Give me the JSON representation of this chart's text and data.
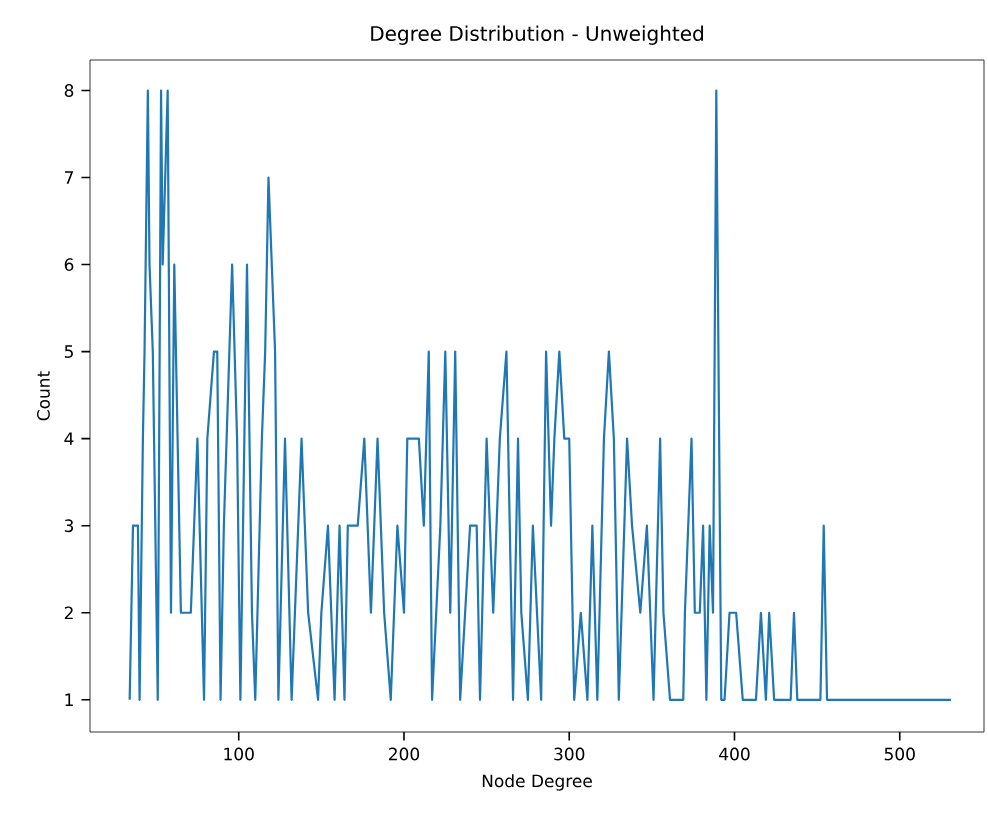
{
  "chart_data": {
    "type": "line",
    "title": "Degree Distribution - Unweighted",
    "xlabel": "Node Degree",
    "ylabel": "Count",
    "x": [
      34,
      36,
      39,
      40,
      42,
      43,
      45,
      46,
      48,
      51,
      53,
      54,
      57,
      59,
      61,
      65,
      67,
      71,
      75,
      79,
      81,
      85,
      87,
      89,
      91,
      96,
      99,
      101,
      105,
      108,
      110,
      114,
      116,
      118,
      122,
      124,
      128,
      132,
      138,
      142,
      148,
      150,
      154,
      158,
      161,
      164,
      166,
      172,
      176,
      180,
      184,
      188,
      192,
      196,
      200,
      202,
      206,
      209,
      212,
      215,
      217,
      222,
      225,
      228,
      231,
      234,
      240,
      244,
      246,
      250,
      254,
      258,
      262,
      266,
      269,
      271,
      275,
      278,
      283,
      286,
      289,
      291,
      294,
      297,
      300,
      303,
      307,
      311,
      314,
      317,
      321,
      324,
      327,
      330,
      335,
      338,
      343,
      347,
      351,
      355,
      357,
      361,
      369,
      370,
      372,
      374,
      376,
      379,
      381,
      383,
      385,
      387,
      389,
      392,
      394,
      397,
      401,
      405,
      413,
      416,
      419,
      421,
      424,
      434,
      436,
      438,
      452,
      454,
      456,
      531
    ],
    "series": [
      {
        "color": "#1f77b4",
        "values": [
          1,
          3,
          3,
          1,
          4,
          5,
          8,
          6,
          5,
          1,
          8,
          6,
          8,
          2,
          6,
          2,
          2,
          2,
          4,
          1,
          4,
          5,
          5,
          1,
          3,
          6,
          4,
          1,
          6,
          2,
          1,
          4,
          5,
          7,
          5,
          1,
          4,
          1,
          4,
          2,
          1,
          2,
          3,
          1,
          3,
          1,
          3,
          3,
          4,
          2,
          4,
          2,
          1,
          3,
          2,
          4,
          4,
          4,
          3,
          5,
          1,
          3,
          5,
          2,
          5,
          1,
          3,
          3,
          1,
          4,
          2,
          4,
          5,
          1,
          4,
          2,
          1,
          3,
          1,
          5,
          3,
          4,
          5,
          4,
          4,
          1,
          2,
          1,
          3,
          1,
          4,
          5,
          4,
          1,
          4,
          3,
          2,
          3,
          1,
          4,
          2,
          1,
          1,
          2,
          3,
          4,
          2,
          2,
          3,
          1,
          3,
          2,
          8,
          1,
          1,
          2,
          2,
          1,
          1,
          2,
          1,
          2,
          1,
          1,
          2,
          1,
          1,
          3,
          1,
          1
        ]
      }
    ],
    "xlim": [
      10,
      551
    ],
    "ylim": [
      0.63,
      8.35
    ],
    "xticks": [
      100,
      200,
      300,
      400,
      500
    ],
    "yticks": [
      1,
      2,
      3,
      4,
      5,
      6,
      7,
      8
    ],
    "grid": false,
    "line_style": "solid"
  }
}
